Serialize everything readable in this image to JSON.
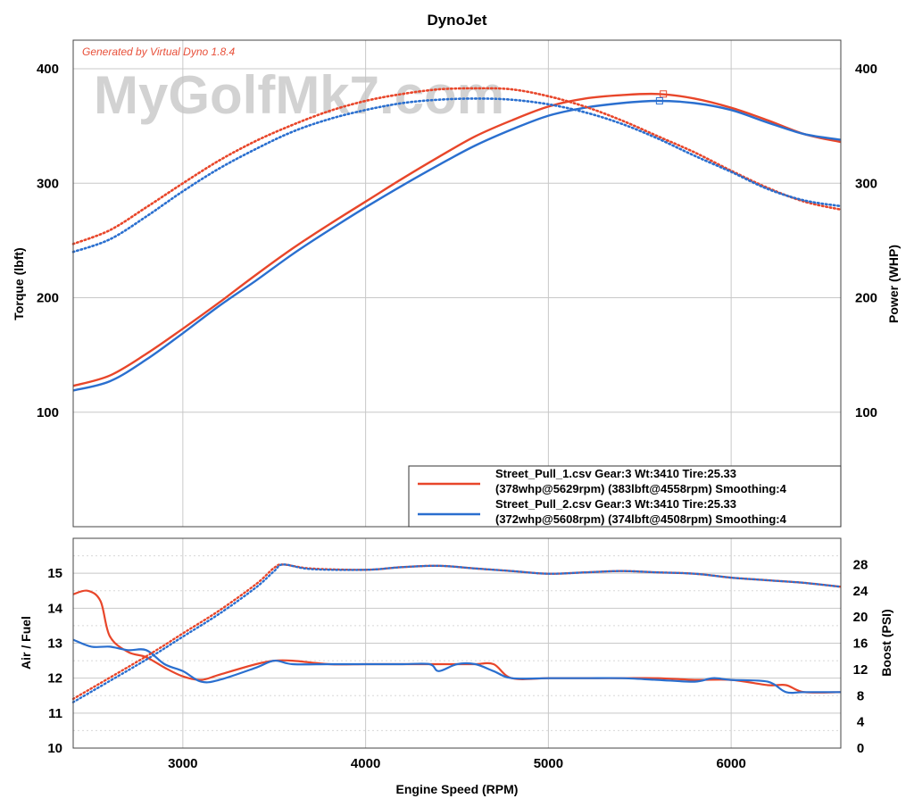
{
  "chart_data": [
    {
      "type": "line",
      "title": "DynoJet",
      "annotation": "Generated by Virtual Dyno 1.8.4",
      "watermark": "MyGolfMk7.com",
      "xlim": [
        2400,
        6600
      ],
      "x_ticks": [
        3000,
        4000,
        5000,
        6000
      ],
      "ylabel": "Torque (lbft)",
      "ylabel_right": "Power (WHP)",
      "ylim": [
        0,
        425
      ],
      "y_ticks": [
        100,
        200,
        300,
        400
      ],
      "y_ticks_right": [
        100,
        200,
        300,
        400
      ],
      "grid": true,
      "legend_position": "bottom-right",
      "legend": [
        {
          "line1": "Street_Pull_1.csv Gear:3 Wt:3410 Tire:25.33",
          "line2": "(378whp@5629rpm) (383lbft@4558rpm) Smoothing:4",
          "color": "#e8462a"
        },
        {
          "line1": "Street_Pull_2.csv Gear:3 Wt:3410 Tire:25.33",
          "line2": "(372whp@5608rpm) (374lbft@4508rpm) Smoothing:4",
          "color": "#2a6fcf"
        }
      ],
      "series": [
        {
          "name": "Street_Pull_1.csv",
          "measure": "power",
          "color": "#e8462a",
          "style": "solid",
          "x": [
            2400,
            2600,
            2800,
            3000,
            3200,
            3400,
            3600,
            3800,
            4000,
            4200,
            4400,
            4600,
            4800,
            5000,
            5200,
            5400,
            5600,
            5800,
            6000,
            6200,
            6400,
            6600
          ],
          "y": [
            123,
            132,
            151,
            173,
            196,
            220,
            243,
            264,
            284,
            304,
            323,
            341,
            355,
            367,
            374,
            377,
            378,
            374,
            366,
            355,
            343,
            336
          ]
        },
        {
          "name": "Street_Pull_2.csv",
          "measure": "power",
          "color": "#2a6fcf",
          "style": "solid",
          "x": [
            2400,
            2600,
            2800,
            3000,
            3200,
            3400,
            3600,
            3800,
            4000,
            4200,
            4400,
            4600,
            4800,
            5000,
            5200,
            5400,
            5600,
            5800,
            6000,
            6200,
            6400,
            6600
          ],
          "y": [
            119,
            127,
            146,
            169,
            193,
            215,
            238,
            259,
            279,
            298,
            316,
            333,
            347,
            359,
            366,
            370,
            372,
            370,
            364,
            353,
            343,
            338
          ]
        },
        {
          "name": "Street_Pull_1.csv",
          "measure": "torque",
          "color": "#e8462a",
          "style": "dotted",
          "x": [
            2400,
            2600,
            2800,
            3000,
            3200,
            3400,
            3600,
            3800,
            4000,
            4200,
            4400,
            4600,
            4800,
            5000,
            5200,
            5400,
            5600,
            5800,
            6000,
            6200,
            6400,
            6600
          ],
          "y": [
            247,
            259,
            279,
            300,
            320,
            337,
            351,
            363,
            372,
            378,
            382,
            383,
            382,
            376,
            367,
            355,
            341,
            327,
            311,
            296,
            284,
            277
          ]
        },
        {
          "name": "Street_Pull_2.csv",
          "measure": "torque",
          "color": "#2a6fcf",
          "style": "dotted",
          "x": [
            2400,
            2600,
            2800,
            3000,
            3200,
            3400,
            3600,
            3800,
            4000,
            4200,
            4400,
            4600,
            4800,
            5000,
            5200,
            5400,
            5600,
            5800,
            6000,
            6200,
            6400,
            6600
          ],
          "y": [
            240,
            251,
            271,
            293,
            313,
            330,
            345,
            356,
            364,
            370,
            373,
            374,
            373,
            369,
            362,
            352,
            339,
            324,
            310,
            295,
            285,
            280
          ]
        }
      ]
    },
    {
      "type": "line",
      "xlabel": "Engine Speed (RPM)",
      "xlim": [
        2400,
        6600
      ],
      "x_ticks": [
        3000,
        4000,
        5000,
        6000
      ],
      "ylabel": "Air / Fuel",
      "ylim": [
        10,
        16
      ],
      "y_ticks": [
        10,
        11,
        12,
        13,
        14,
        15
      ],
      "ylabel_right": "Boost (PSI)",
      "ylim_right": [
        0,
        32
      ],
      "y_ticks_right": [
        0,
        4,
        8,
        12,
        16,
        20,
        24,
        28
      ],
      "grid": true,
      "series": [
        {
          "name": "Street_Pull_1.csv",
          "measure": "air_fuel",
          "axis": "left",
          "color": "#e8462a",
          "style": "solid",
          "x": [
            2400,
            2480,
            2550,
            2600,
            2700,
            2800,
            2900,
            3000,
            3100,
            3200,
            3400,
            3500,
            3600,
            3800,
            4000,
            4200,
            4400,
            4500,
            4600,
            4700,
            4800,
            5000,
            5200,
            5400,
            5600,
            5800,
            6000,
            6200,
            6300,
            6400,
            6600
          ],
          "y": [
            14.4,
            14.5,
            14.2,
            13.2,
            12.75,
            12.6,
            12.3,
            12.05,
            11.95,
            12.1,
            12.4,
            12.5,
            12.5,
            12.4,
            12.4,
            12.4,
            12.4,
            12.4,
            12.4,
            12.4,
            12.0,
            12.0,
            12.0,
            12.0,
            12.0,
            11.95,
            11.95,
            11.8,
            11.8,
            11.6,
            11.6
          ]
        },
        {
          "name": "Street_Pull_2.csv",
          "measure": "air_fuel",
          "axis": "left",
          "color": "#2a6fcf",
          "style": "solid",
          "x": [
            2400,
            2500,
            2600,
            2700,
            2800,
            2900,
            3000,
            3100,
            3200,
            3400,
            3500,
            3600,
            3800,
            4000,
            4200,
            4350,
            4400,
            4500,
            4600,
            4700,
            4800,
            5000,
            5200,
            5400,
            5600,
            5800,
            5900,
            6000,
            6200,
            6300,
            6400,
            6600
          ],
          "y": [
            13.1,
            12.9,
            12.9,
            12.8,
            12.8,
            12.4,
            12.2,
            11.9,
            11.95,
            12.3,
            12.5,
            12.4,
            12.4,
            12.4,
            12.4,
            12.4,
            12.2,
            12.4,
            12.4,
            12.2,
            12.0,
            12.0,
            12.0,
            12.0,
            11.95,
            11.9,
            12.0,
            11.95,
            11.9,
            11.6,
            11.6,
            11.6
          ]
        },
        {
          "name": "Street_Pull_1.csv",
          "measure": "boost",
          "axis": "right",
          "color": "#e8462a",
          "style": "dotted",
          "x": [
            2400,
            2800,
            3000,
            3200,
            3400,
            3500,
            3550,
            3700,
            4000,
            4200,
            4400,
            4600,
            4800,
            5000,
            5200,
            5400,
            5600,
            5800,
            6000,
            6200,
            6400,
            6600
          ],
          "y": [
            7.5,
            14,
            17.5,
            21,
            25,
            27.5,
            28,
            27.4,
            27.2,
            27.6,
            27.8,
            27.4,
            27.0,
            26.6,
            26.8,
            27.0,
            26.8,
            26.6,
            26.0,
            25.6,
            25.2,
            24.6
          ]
        },
        {
          "name": "Street_Pull_2.csv",
          "measure": "boost",
          "axis": "right",
          "color": "#2a6fcf",
          "style": "dotted",
          "x": [
            2400,
            2800,
            3000,
            3200,
            3400,
            3500,
            3550,
            3700,
            4000,
            4200,
            4400,
            4600,
            4800,
            5000,
            5200,
            5400,
            5600,
            5800,
            6000,
            6200,
            6400,
            6600
          ],
          "y": [
            7.0,
            13.5,
            17.0,
            20.5,
            24.5,
            27.0,
            28,
            27.3,
            27.2,
            27.6,
            27.8,
            27.4,
            27.0,
            26.6,
            26.8,
            27.0,
            26.8,
            26.6,
            26.0,
            25.6,
            25.2,
            24.6
          ]
        }
      ]
    }
  ]
}
